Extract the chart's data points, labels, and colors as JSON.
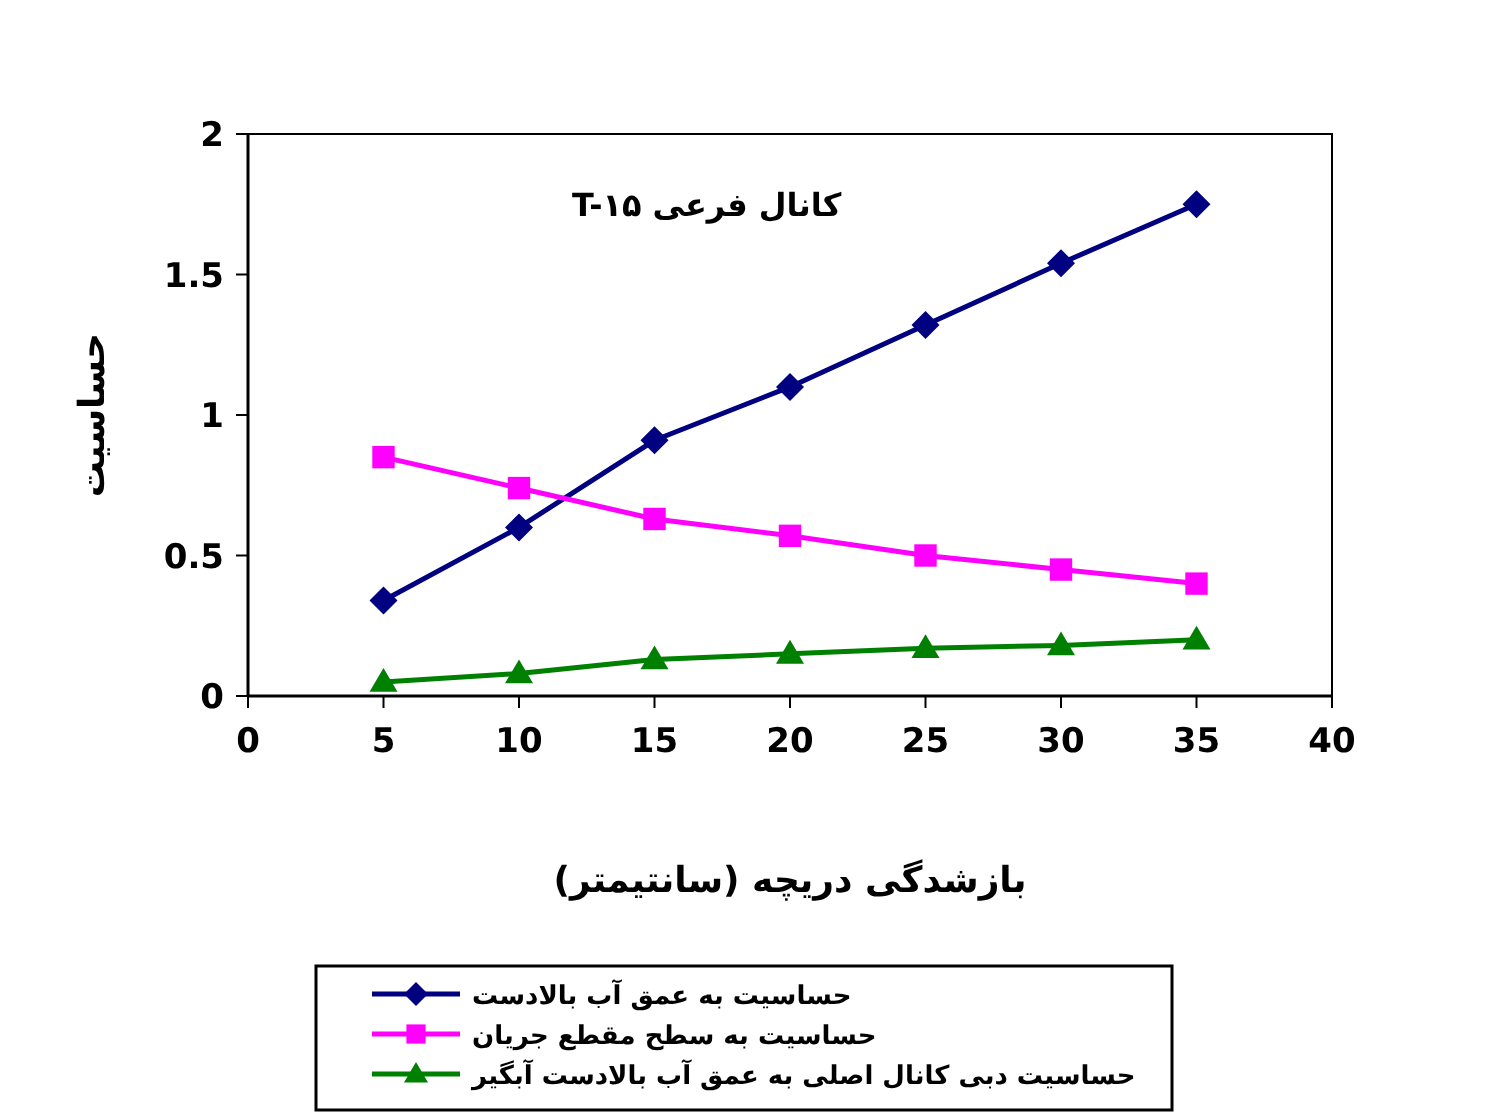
{
  "chart_data": {
    "type": "line",
    "title": "کانال فرعی T-۱۵",
    "xlabel": "بازشدگی دریچه (سانتیمتر)",
    "ylabel": "حساسیت",
    "x": [
      5,
      10,
      15,
      20,
      25,
      30,
      35
    ],
    "xlim": [
      0,
      40
    ],
    "xticks": [
      0,
      5,
      10,
      15,
      20,
      25,
      30,
      35,
      40
    ],
    "ylim": [
      0,
      2
    ],
    "yticks": [
      0,
      0.5,
      1,
      1.5,
      2
    ],
    "grid": false,
    "legend": "bottom",
    "line_style": "solid",
    "series": [
      {
        "name": "حساسیت به عمق آب بالادست",
        "color": "#000080",
        "marker": "diamond",
        "values": [
          0.34,
          0.6,
          0.91,
          1.1,
          1.32,
          1.54,
          1.75
        ]
      },
      {
        "name": "حساسیت به سطح مقطع جریان",
        "color": "#ff00ff",
        "marker": "square",
        "values": [
          0.85,
          0.74,
          0.63,
          0.57,
          0.5,
          0.45,
          0.4
        ]
      },
      {
        "name": "حساسیت دبی کانال اصلی به عمق آب بالادست آبگیر",
        "color": "#008000",
        "marker": "triangle",
        "values": [
          0.05,
          0.08,
          0.13,
          0.15,
          0.17,
          0.18,
          0.2
        ]
      }
    ]
  }
}
